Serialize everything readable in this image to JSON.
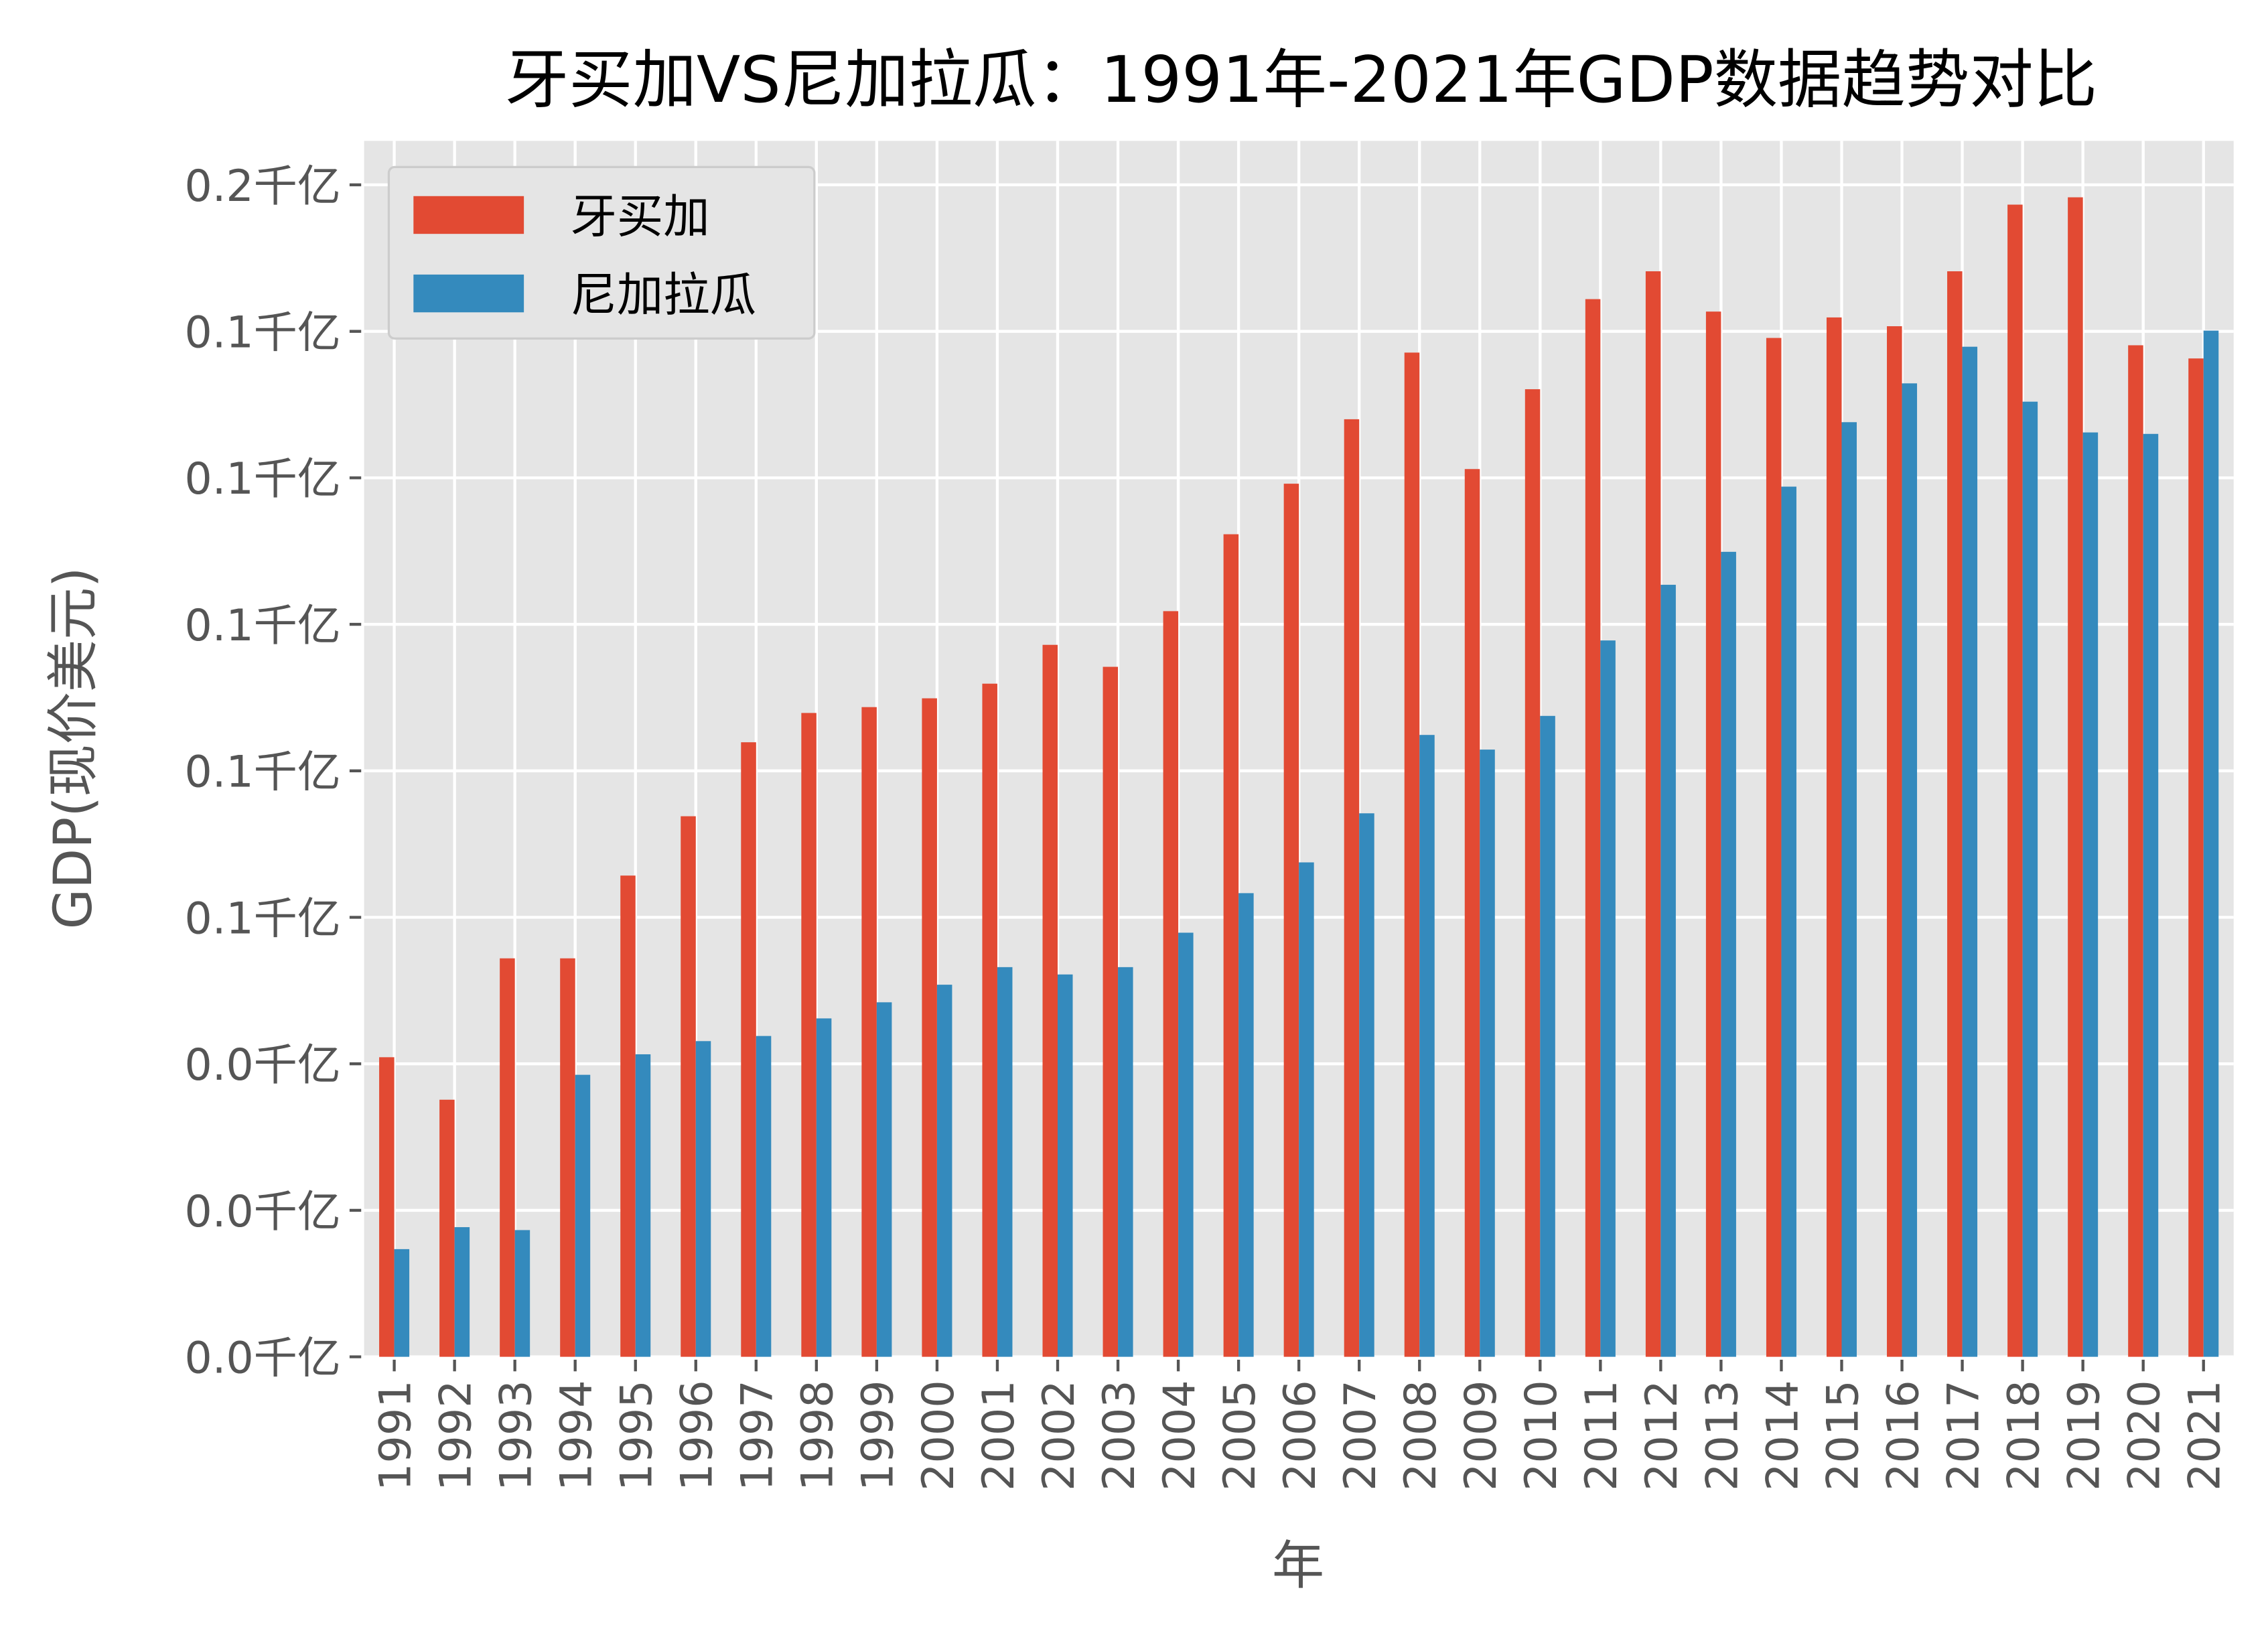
{
  "chart_data": {
    "type": "bar",
    "title": "牙买加VS尼加拉瓜：1991年-2021年GDP数据趋势对比",
    "xlabel": "年",
    "ylabel": "GDP(现价美元)",
    "y_unit": "千亿",
    "ylim_billion_usd": [
      0,
      16.6
    ],
    "yticks_billion_usd": [
      0,
      2,
      4,
      6,
      8,
      10,
      12,
      14,
      16
    ],
    "ytick_labels": [
      "0.0千亿",
      "0.0千亿",
      "0.0千亿",
      "0.1千亿",
      "0.1千亿",
      "0.1千亿",
      "0.1千亿",
      "0.1千亿",
      "0.2千亿"
    ],
    "grid": true,
    "legend_position": "top-left",
    "categories": [
      "1991",
      "1992",
      "1993",
      "1994",
      "1995",
      "1996",
      "1997",
      "1998",
      "1999",
      "2000",
      "2001",
      "2002",
      "2003",
      "2004",
      "2005",
      "2006",
      "2007",
      "2008",
      "2009",
      "2010",
      "2011",
      "2012",
      "2013",
      "2014",
      "2015",
      "2016",
      "2017",
      "2018",
      "2019",
      "2020",
      "2021"
    ],
    "series": [
      {
        "name": "牙买加",
        "color": "#E24A33",
        "values_billion_usd": [
          4.09,
          3.51,
          5.44,
          5.44,
          6.57,
          7.38,
          8.39,
          8.79,
          8.87,
          8.99,
          9.19,
          9.72,
          9.42,
          10.18,
          11.23,
          11.92,
          12.8,
          13.71,
          12.12,
          13.21,
          14.44,
          14.82,
          14.27,
          13.91,
          14.19,
          14.07,
          14.82,
          15.73,
          15.83,
          13.81,
          13.63
        ]
      },
      {
        "name": "尼加拉瓜",
        "color": "#348ABD",
        "values_billion_usd": [
          1.47,
          1.77,
          1.73,
          3.85,
          4.13,
          4.31,
          4.38,
          4.62,
          4.84,
          5.08,
          5.32,
          5.22,
          5.32,
          5.79,
          6.33,
          6.75,
          7.42,
          8.49,
          8.29,
          8.75,
          9.78,
          10.54,
          10.99,
          11.88,
          12.76,
          13.29,
          13.79,
          13.04,
          12.62,
          12.6,
          14.01
        ]
      }
    ]
  }
}
